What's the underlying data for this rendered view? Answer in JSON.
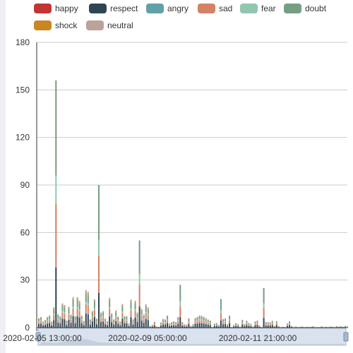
{
  "chart_data": {
    "type": "bar",
    "stacked": true,
    "legend_position": "top",
    "grid": true,
    "ylim": [
      0,
      180
    ],
    "y_ticks": [
      "0",
      "30",
      "60",
      "90",
      "120",
      "150",
      "180"
    ],
    "x_tick_labels": [
      "2020-02-05 13:00:00",
      "2020-02-09 05:00:00",
      "2020-02-11 21:00:00"
    ],
    "series": [
      {
        "name": "happy",
        "color": "#c23531"
      },
      {
        "name": "respect",
        "color": "#2f4554"
      },
      {
        "name": "angry",
        "color": "#61a0a8"
      },
      {
        "name": "sad",
        "color": "#d48265"
      },
      {
        "name": "fear",
        "color": "#91c7ae"
      },
      {
        "name": "doubt",
        "color": "#749f83"
      },
      {
        "name": "shock",
        "color": "#ca8622"
      },
      {
        "name": "neutral",
        "color": "#bda29a"
      }
    ],
    "peak_totals": [
      {
        "x": "2020-02-05 19:00:00",
        "total": 156
      },
      {
        "x": "2020-02-06 23:00:00",
        "total": 90
      },
      {
        "x": "2020-02-09 07:00:00",
        "total": 55
      },
      {
        "x": "2020-02-10 07:00:00",
        "total": 27
      },
      {
        "x": "2020-02-11 07:00:00",
        "total": 18
      },
      {
        "x": "2020-02-12 15:00:00",
        "total": 25
      }
    ],
    "peak_composition": {
      "respect": 38,
      "sad": 40,
      "fear": 18,
      "doubt": 60
    }
  },
  "data_zoom": {
    "visible": true
  }
}
